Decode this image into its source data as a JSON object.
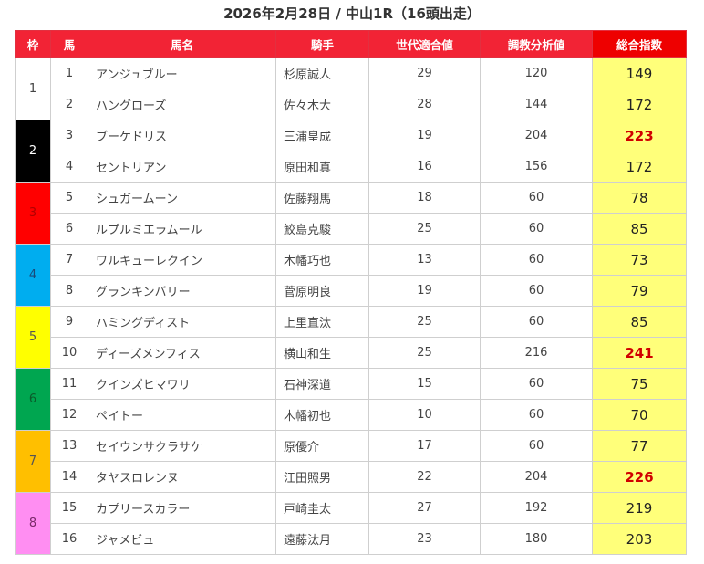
{
  "title": "2026年2月28日 / 中山1R（16頭出走）",
  "headers": {
    "waku": "枠",
    "uma": "馬",
    "name": "馬名",
    "jockey": "騎手",
    "generation": "世代適合値",
    "training": "調教分析値",
    "total": "総合指数"
  },
  "colors": {
    "header_bg": "#f22335",
    "total_header_bg": "#ee0000",
    "total_cell_bg": "#ffff7a",
    "highlight_text": "#d00000"
  },
  "wakus": [
    {
      "label": "1",
      "bg": "#ffffff",
      "fg": "#444444"
    },
    {
      "label": "2",
      "bg": "#000000",
      "fg": "#ffffff"
    },
    {
      "label": "3",
      "bg": "#ff0000",
      "fg": "#b00000"
    },
    {
      "label": "4",
      "bg": "#00adef",
      "fg": "#1a4a7a"
    },
    {
      "label": "5",
      "bg": "#ffff00",
      "fg": "#555555"
    },
    {
      "label": "6",
      "bg": "#00a650",
      "fg": "#0a5a2a"
    },
    {
      "label": "7",
      "bg": "#ffbf00",
      "fg": "#555555"
    },
    {
      "label": "8",
      "bg": "#ff8ef2",
      "fg": "#7a2a6a"
    }
  ],
  "rows": [
    {
      "uma": "1",
      "name": "アンジュブルー",
      "jockey": "杉原誠人",
      "generation": "29",
      "training": "120",
      "total": "149",
      "highlight": false
    },
    {
      "uma": "2",
      "name": "ハングローズ",
      "jockey": "佐々木大",
      "generation": "28",
      "training": "144",
      "total": "172",
      "highlight": false
    },
    {
      "uma": "3",
      "name": "ブーケドリス",
      "jockey": "三浦皇成",
      "generation": "19",
      "training": "204",
      "total": "223",
      "highlight": true
    },
    {
      "uma": "4",
      "name": "セントリアン",
      "jockey": "原田和真",
      "generation": "16",
      "training": "156",
      "total": "172",
      "highlight": false
    },
    {
      "uma": "5",
      "name": "シュガームーン",
      "jockey": "佐藤翔馬",
      "generation": "18",
      "training": "60",
      "total": "78",
      "highlight": false
    },
    {
      "uma": "6",
      "name": "ルプルミエラムール",
      "jockey": "鮫島克駿",
      "generation": "25",
      "training": "60",
      "total": "85",
      "highlight": false
    },
    {
      "uma": "7",
      "name": "ワルキューレクイン",
      "jockey": "木幡巧也",
      "generation": "13",
      "training": "60",
      "total": "73",
      "highlight": false
    },
    {
      "uma": "8",
      "name": "グランキンバリー",
      "jockey": "菅原明良",
      "generation": "19",
      "training": "60",
      "total": "79",
      "highlight": false
    },
    {
      "uma": "9",
      "name": "ハミングディスト",
      "jockey": "上里直汰",
      "generation": "25",
      "training": "60",
      "total": "85",
      "highlight": false
    },
    {
      "uma": "10",
      "name": "ディーズメンフィス",
      "jockey": "横山和生",
      "generation": "25",
      "training": "216",
      "total": "241",
      "highlight": true
    },
    {
      "uma": "11",
      "name": "クインズヒマワリ",
      "jockey": "石神深道",
      "generation": "15",
      "training": "60",
      "total": "75",
      "highlight": false
    },
    {
      "uma": "12",
      "name": "ペイトー",
      "jockey": "木幡初也",
      "generation": "10",
      "training": "60",
      "total": "70",
      "highlight": false
    },
    {
      "uma": "13",
      "name": "セイウンサクラサケ",
      "jockey": "原優介",
      "generation": "17",
      "training": "60",
      "total": "77",
      "highlight": false
    },
    {
      "uma": "14",
      "name": "タヤスロレンヌ",
      "jockey": "江田照男",
      "generation": "22",
      "training": "204",
      "total": "226",
      "highlight": true
    },
    {
      "uma": "15",
      "name": "カプリースカラー",
      "jockey": "戸崎圭太",
      "generation": "27",
      "training": "192",
      "total": "219",
      "highlight": false
    },
    {
      "uma": "16",
      "name": "ジャメビュ",
      "jockey": "遠藤汰月",
      "generation": "23",
      "training": "180",
      "total": "203",
      "highlight": false
    }
  ]
}
